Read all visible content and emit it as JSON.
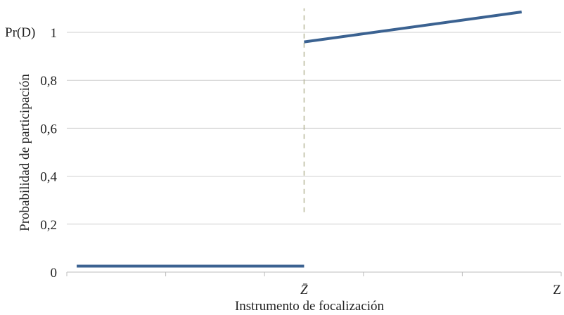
{
  "chart_data": {
    "type": "line",
    "title": "",
    "xlabel": "Instrumento de focalización",
    "ylabel": "Probabilidad de participación",
    "y_top_label": "Pr(D)",
    "ylim": [
      0,
      1.1
    ],
    "yticks": [
      0,
      0.2,
      0.4,
      0.6,
      0.8,
      1
    ],
    "ytick_labels": [
      "0",
      "0,2",
      "0,4",
      "0,6",
      "0,8",
      "1"
    ],
    "xlim": [
      0,
      5
    ],
    "x_minor_ticks": [
      1,
      2,
      3,
      4
    ],
    "x_labeled_ticks": [
      {
        "x": 2.4,
        "label": "Z̄"
      },
      {
        "x": 5,
        "label": "Z"
      }
    ],
    "threshold": {
      "x": 2.4,
      "y_range": [
        0.25,
        1.1
      ],
      "color": "#b8b89a"
    },
    "series": [
      {
        "color": "#3b6291",
        "x": [
          0.1,
          2.4
        ],
        "y": [
          0.025,
          0.025
        ]
      },
      {
        "color": "#3b6291",
        "x": [
          2.4,
          4.6
        ],
        "y": [
          0.96,
          1.085
        ]
      }
    ],
    "grid": true
  }
}
